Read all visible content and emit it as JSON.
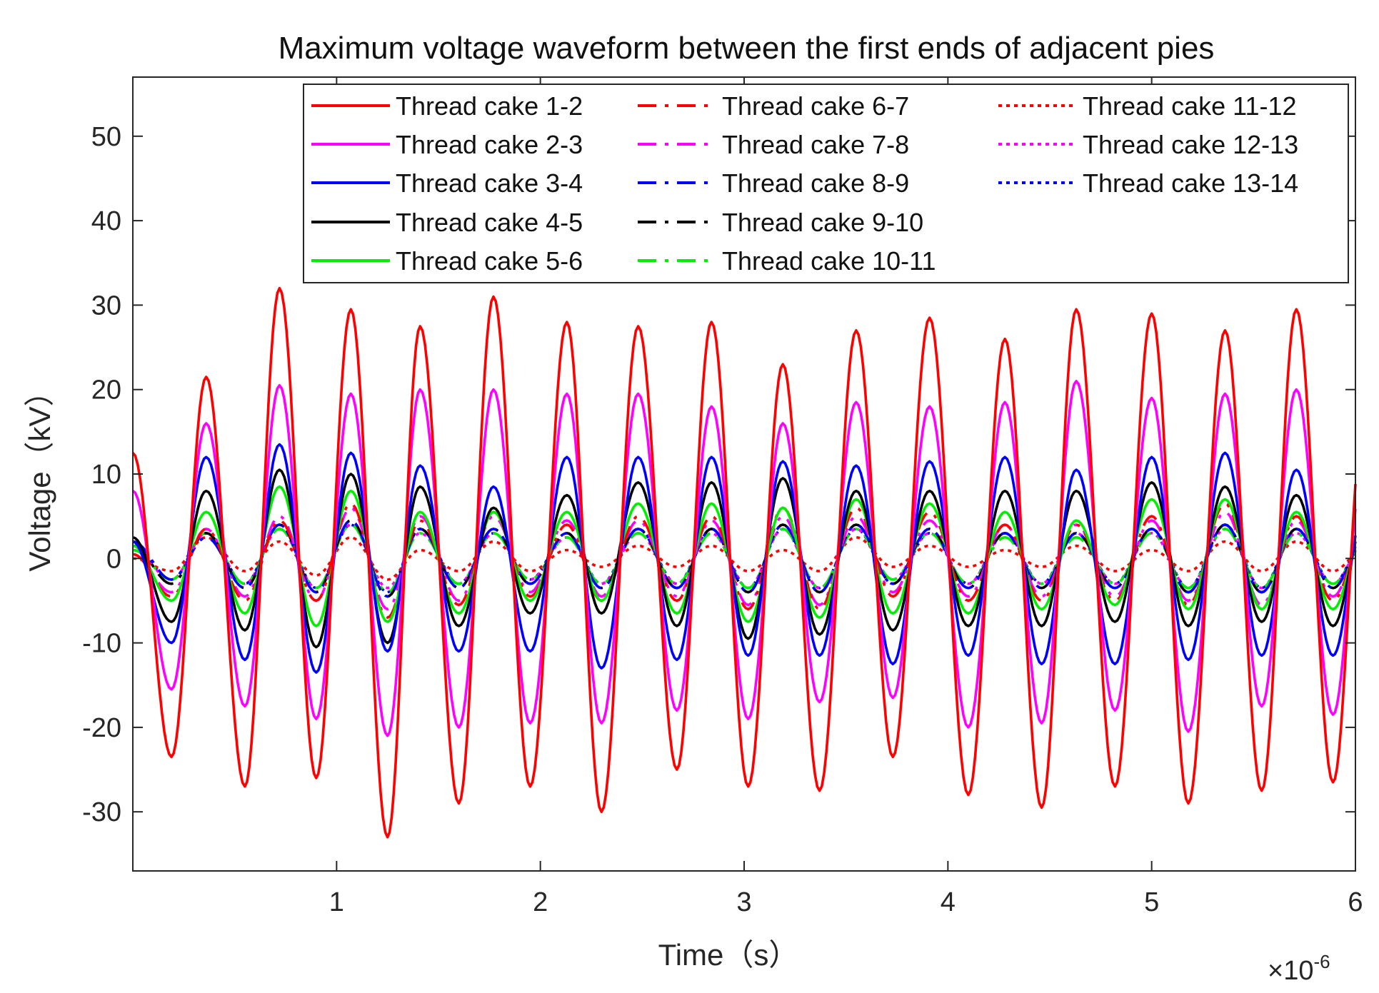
{
  "chart_data": {
    "type": "line",
    "title": "Maximum voltage waveform between the first ends of adjacent pies",
    "xlabel": "Time（s）",
    "ylabel": "Voltage（kV）",
    "x_exponent_label": "×10",
    "x_exponent_power": "-6",
    "xlim": [
      0,
      6
    ],
    "ylim": [
      -37,
      57
    ],
    "x_ticks": [
      1,
      2,
      3,
      4,
      5,
      6
    ],
    "x_tick_labels": [
      "1",
      "2",
      "3",
      "4",
      "5",
      "6"
    ],
    "y_ticks": [
      -30,
      -20,
      -10,
      0,
      10,
      20,
      30,
      40,
      50
    ],
    "y_tick_labels": [
      "-30",
      "-20",
      "-10",
      "0",
      "10",
      "20",
      "30",
      "40",
      "50"
    ],
    "grid": false,
    "legend_position": "top-right",
    "period": 0.3125,
    "peak_times": [
      0.36,
      0.72,
      1.07,
      1.41,
      1.77,
      2.13,
      2.48,
      2.84,
      3.19,
      3.55,
      3.91,
      4.28,
      4.63,
      5.0,
      5.36,
      5.71
    ],
    "trough_times": [
      0.19,
      0.55,
      0.9,
      1.25,
      1.6,
      1.95,
      2.3,
      2.67,
      3.02,
      3.37,
      3.73,
      4.1,
      4.46,
      4.82,
      5.18,
      5.54,
      5.89
    ],
    "series": [
      {
        "name": "Thread  cake 1-2",
        "color": "#ff0000",
        "style": "solid",
        "initial": 12.5,
        "peaks": [
          21.5,
          32,
          29.5,
          27.5,
          31,
          28,
          27.5,
          28,
          23,
          27,
          28.5,
          26,
          29.5,
          29,
          27,
          29.5
        ],
        "troughs": [
          -23.5,
          -27,
          -26,
          -33,
          -29,
          -27,
          -30,
          -25,
          -27,
          -27.5,
          -23.5,
          -28,
          -29.5,
          -27,
          -29,
          -27.5,
          -26.5
        ]
      },
      {
        "name": "Thread  cake 2-3",
        "color": "#ff00ff",
        "style": "solid",
        "initial": 8,
        "peaks": [
          16,
          20.5,
          19.5,
          20,
          20,
          19.5,
          19.5,
          18,
          16,
          18.5,
          18,
          18.5,
          21,
          19,
          19.5,
          20
        ],
        "troughs": [
          -15.5,
          -17.5,
          -19,
          -21,
          -20,
          -19.5,
          -19.5,
          -18,
          -19,
          -17,
          -16.5,
          -20,
          -19.5,
          -18,
          -20.5,
          -17.5,
          -18.5
        ]
      },
      {
        "name": "Thread  cake 3-4",
        "color": "#0000ff",
        "style": "solid",
        "initial": 2,
        "peaks": [
          12,
          13.5,
          12.5,
          11,
          8.5,
          12,
          12,
          12,
          11.5,
          11,
          11.5,
          12,
          10.5,
          12,
          12.5,
          10.5
        ],
        "troughs": [
          -10,
          -12,
          -13.5,
          -11,
          -11,
          -11,
          -13,
          -12,
          -11.5,
          -11.5,
          -12.5,
          -11.5,
          -12.5,
          -12.5,
          -12,
          -11.5,
          -11.5
        ]
      },
      {
        "name": "Thread  cake 4-5",
        "color": "#000000",
        "style": "solid",
        "initial": 2.5,
        "peaks": [
          8,
          10.5,
          10,
          8.5,
          6,
          7.5,
          9,
          9,
          9.5,
          8,
          8,
          8,
          8,
          9,
          8.5,
          7.5
        ],
        "troughs": [
          -7.5,
          -8.5,
          -10.5,
          -10,
          -8,
          -6.5,
          -6.5,
          -8,
          -9.5,
          -9,
          -8.5,
          -8,
          -8,
          -7.5,
          -8,
          -7.5,
          -8
        ]
      },
      {
        "name": "Thread  cake 5-6",
        "color": "#00ee00",
        "style": "solid",
        "initial": 1.5,
        "peaks": [
          5.5,
          8.5,
          8,
          5.5,
          5.5,
          5.5,
          6.5,
          6.5,
          6,
          7,
          6.5,
          5.5,
          4.5,
          7,
          7,
          5.5
        ],
        "troughs": [
          -5,
          -6.5,
          -8,
          -7.5,
          -6.5,
          -5,
          -5,
          -6.5,
          -7.5,
          -7,
          -6.5,
          -6.5,
          -6,
          -5.5,
          -6,
          -6,
          -6
        ]
      },
      {
        "name": "Thread  cake 6-7",
        "color": "#ff0000",
        "style": "dashdot",
        "initial": 0.5,
        "peaks": [
          3.5,
          4.5,
          6.5,
          4.5,
          5.5,
          4,
          5,
          5,
          6,
          6,
          5.5,
          4,
          4,
          5,
          6.5,
          5
        ],
        "troughs": [
          -4.5,
          -5,
          -5,
          -7,
          -5.5,
          -4.5,
          -5,
          -5,
          -6,
          -6,
          -4.5,
          -5,
          -5,
          -5,
          -5.5,
          -6,
          -5
        ]
      },
      {
        "name": "Thread  cake 7-8",
        "color": "#ff00ff",
        "style": "dashdot",
        "initial": 0.5,
        "peaks": [
          3.5,
          5,
          6,
          5,
          5,
          4.5,
          4.5,
          4.5,
          5,
          5,
          4.5,
          4,
          4,
          4.5,
          5.5,
          4.5
        ],
        "troughs": [
          -4,
          -4.5,
          -5,
          -6,
          -5,
          -4,
          -4.5,
          -4.5,
          -5.5,
          -5.5,
          -4,
          -4.5,
          -4.5,
          -4.5,
          -5,
          -5.5,
          -4.5
        ]
      },
      {
        "name": "Thread  cake 8-9",
        "color": "#0000ff",
        "style": "dashdot",
        "initial": 2,
        "peaks": [
          2.5,
          4,
          4.5,
          3.5,
          3.5,
          3,
          3.5,
          3.5,
          4,
          4,
          3.5,
          3,
          3,
          3.5,
          4,
          3.5
        ],
        "troughs": [
          -2.5,
          -3.5,
          -4,
          -4.5,
          -3.5,
          -3,
          -3.5,
          -3.5,
          -4,
          -4,
          -3,
          -3.5,
          -3.5,
          -3.5,
          -4,
          -4,
          -3.5
        ]
      },
      {
        "name": "Thread  cake 9-10",
        "color": "#000000",
        "style": "dashdot",
        "initial": 1.5,
        "peaks": [
          3,
          4,
          4.5,
          3.5,
          3.5,
          3,
          3.5,
          3.5,
          4,
          4,
          3.5,
          3,
          3,
          3.5,
          4,
          3.5
        ],
        "troughs": [
          -3,
          -3.5,
          -4,
          -4.5,
          -3.5,
          -3,
          -3.5,
          -3.5,
          -4,
          -4,
          -3,
          -3.5,
          -3.5,
          -3.5,
          -4,
          -4,
          -3.5
        ]
      },
      {
        "name": "Thread  cake 10-11",
        "color": "#00ee00",
        "style": "dashdot",
        "initial": 1,
        "peaks": [
          3,
          3.5,
          4,
          3,
          3,
          2.5,
          3,
          3,
          3.5,
          3.5,
          3,
          2.5,
          2.5,
          3,
          3.5,
          3
        ],
        "troughs": [
          -2.5,
          -3,
          -3.5,
          -4,
          -3,
          -2.5,
          -3,
          -3,
          -3.5,
          -3.5,
          -2.5,
          -3,
          -3,
          -3,
          -3.5,
          -3.5,
          -3
        ]
      },
      {
        "name": "Thread  cake 11-12",
        "color": "#ff0000",
        "style": "dotted",
        "initial": 0,
        "peaks": [
          2.5,
          2,
          2.5,
          1,
          2,
          1,
          1.5,
          1.5,
          1,
          2.5,
          1.5,
          1,
          1.5,
          1,
          2,
          2
        ],
        "troughs": [
          -1.5,
          -1.5,
          -2,
          -2.5,
          -1.5,
          -1.5,
          -1,
          -1,
          -1.5,
          -1.5,
          -1,
          -1,
          -1,
          -1.5,
          -1.5,
          -1.5,
          -1.5
        ]
      },
      {
        "name": "Thread  cake 12-13",
        "color": "#ff00ff",
        "style": "dotted",
        "initial": 1,
        "peaks": [
          3,
          3.5,
          4,
          3,
          3,
          2.5,
          3,
          3,
          3.5,
          3.5,
          3,
          3,
          3,
          3,
          3.5,
          3
        ],
        "troughs": [
          -2.5,
          -3,
          -3.5,
          -3.5,
          -3,
          -2.5,
          -3,
          -3,
          -3.5,
          -3.5,
          -2.5,
          -3,
          -3,
          -3,
          -3.5,
          -3.5,
          -3
        ]
      },
      {
        "name": "Thread  cake 13-14",
        "color": "#0000ff",
        "style": "dotted",
        "initial": 1.5,
        "peaks": [
          3,
          4,
          4,
          3.5,
          3,
          3,
          3.5,
          3.5,
          3.5,
          3.5,
          3,
          3,
          3,
          3.5,
          4,
          3.5
        ],
        "troughs": [
          -2.5,
          -3,
          -3.5,
          -4,
          -3,
          -2.5,
          -3,
          -3,
          -3.5,
          -3.5,
          -3,
          -3,
          -3,
          -3,
          -3.5,
          -3.5,
          -3
        ]
      }
    ]
  }
}
